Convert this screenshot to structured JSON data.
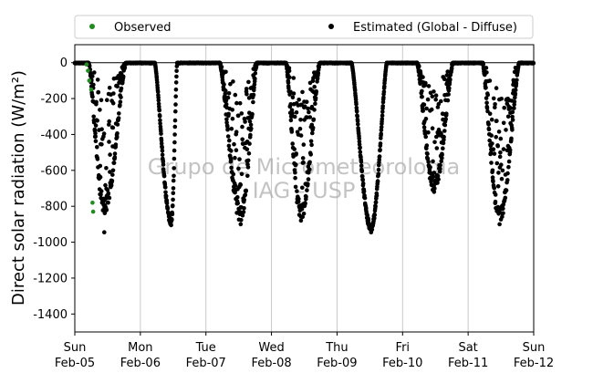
{
  "chart_data": {
    "type": "scatter",
    "title": "",
    "ylabel": "Direct solar radiation (W/m²)",
    "xlabel": "",
    "ylim": [
      -1500,
      100
    ],
    "xlim": [
      0,
      7
    ],
    "y_ticks": [
      0,
      -200,
      -400,
      -600,
      -800,
      -1000,
      -1200,
      -1400
    ],
    "x_ticks": [
      {
        "day": 0,
        "weekday": "Sun",
        "date": "Feb-05"
      },
      {
        "day": 1,
        "weekday": "Mon",
        "date": "Feb-06"
      },
      {
        "day": 2,
        "weekday": "Tue",
        "date": "Feb-07"
      },
      {
        "day": 3,
        "weekday": "Wed",
        "date": "Feb-08"
      },
      {
        "day": 4,
        "weekday": "Thu",
        "date": "Feb-09"
      },
      {
        "day": 5,
        "weekday": "Fri",
        "date": "Feb-10"
      },
      {
        "day": 6,
        "weekday": "Sat",
        "date": "Feb-11"
      },
      {
        "day": 7,
        "weekday": "Sun",
        "date": "Feb-12"
      }
    ],
    "grid": "vertical",
    "legend_position": "top",
    "watermark": [
      "Grupo de Micrometeorologia",
      "IAG - USP"
    ],
    "series": [
      {
        "name": "Observed",
        "color": "#228b22",
        "points": [
          [
            0.18,
            -10
          ],
          [
            0.2,
            -45
          ],
          [
            0.22,
            -100
          ],
          [
            0.25,
            -150
          ],
          [
            0.27,
            -780
          ],
          [
            0.28,
            -830
          ]
        ]
      },
      {
        "name": "Estimated (Global - Diffuse)",
        "color": "#000000",
        "daily_troughs": [
          {
            "day": 0,
            "start": 0.21,
            "bottom": 0.45,
            "end": 0.78,
            "min": -840,
            "extreme": -945,
            "noisy": true
          },
          {
            "day": 1,
            "start": 1.22,
            "bottom": 1.47,
            "end": 1.56,
            "min": -905,
            "extreme": -905,
            "noisy": false
          },
          {
            "day": 2,
            "start": 2.21,
            "bottom": 2.53,
            "end": 2.78,
            "min": -890,
            "extreme": -900,
            "noisy": true
          },
          {
            "day": 3,
            "start": 3.22,
            "bottom": 3.45,
            "end": 3.74,
            "min": -880,
            "extreme": -880,
            "noisy": true
          },
          {
            "day": 4,
            "start": 4.22,
            "bottom": 4.52,
            "end": 4.76,
            "min": -940,
            "extreme": -945,
            "noisy": false
          },
          {
            "day": 5,
            "start": 5.22,
            "bottom": 5.48,
            "end": 5.77,
            "min": -720,
            "extreme": -720,
            "noisy": true
          },
          {
            "day": 6,
            "start": 6.22,
            "bottom": 6.48,
            "end": 6.78,
            "min": -900,
            "extreme": -900,
            "noisy": true
          }
        ]
      }
    ]
  }
}
